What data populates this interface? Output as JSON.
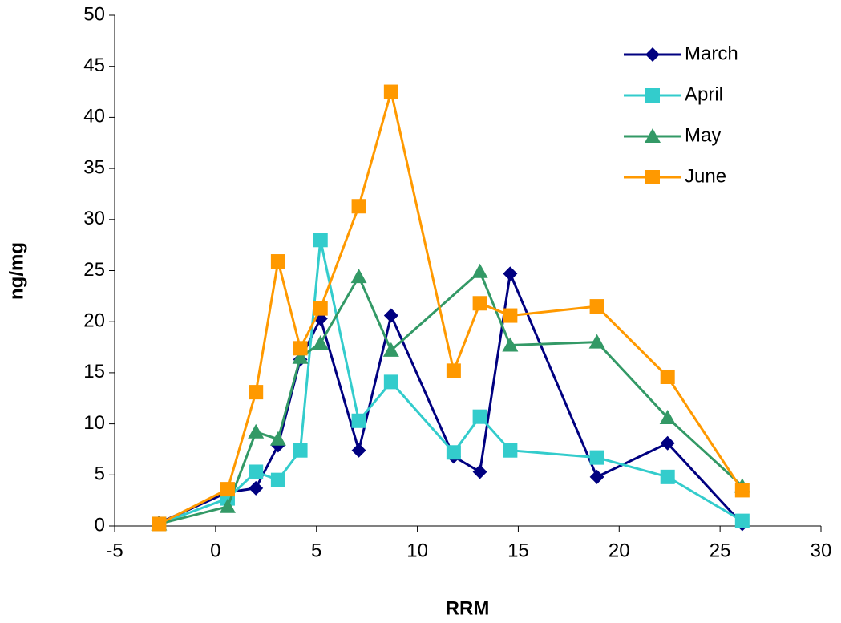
{
  "chart_data": {
    "type": "line",
    "x_label": "RRM",
    "y_label": "ng/mg",
    "xlim": [
      -5,
      30
    ],
    "xticks": [
      -5,
      0,
      5,
      10,
      15,
      20,
      25,
      30
    ],
    "ylim": [
      0,
      50
    ],
    "yticks": [
      0,
      5,
      10,
      15,
      20,
      25,
      30,
      35,
      40,
      45,
      50
    ],
    "grid": false,
    "legend": "upper right",
    "series": [
      {
        "name": "March",
        "color": "#000080",
        "marker": "diamond",
        "x": [
          -2.8,
          0.6,
          2.0,
          3.1,
          4.2,
          5.2,
          7.1,
          8.7,
          11.8,
          13.1,
          14.6,
          18.9,
          22.4,
          26.1
        ],
        "values": [
          0.3,
          3.3,
          3.7,
          7.9,
          16.3,
          20.3,
          7.4,
          20.6,
          6.8,
          5.3,
          24.7,
          4.8,
          8.1,
          0.2
        ]
      },
      {
        "name": "April",
        "color": "#33CCCC",
        "marker": "square",
        "x": [
          -2.8,
          0.6,
          2.0,
          3.1,
          4.2,
          5.2,
          7.1,
          8.7,
          11.8,
          13.1,
          14.6,
          18.9,
          22.4,
          26.1
        ],
        "values": [
          0.2,
          2.7,
          5.3,
          4.5,
          7.4,
          28,
          10.3,
          14.1,
          7.2,
          10.7,
          7.4,
          6.7,
          4.8,
          0.5
        ]
      },
      {
        "name": "May",
        "color": "#339966",
        "marker": "triangle",
        "x": [
          -2.8,
          0.6,
          2.0,
          3.1,
          4.2,
          5.2,
          7.1,
          8.7,
          13.1,
          14.6,
          18.9,
          22.4,
          26.1
        ],
        "values": [
          0.2,
          1.9,
          9.2,
          8.5,
          16.5,
          17.9,
          24.4,
          17.2,
          24.9,
          17.7,
          18,
          10.6,
          3.9
        ]
      },
      {
        "name": "June",
        "color": "#FF9900",
        "marker": "square",
        "x": [
          -2.8,
          0.6,
          2.0,
          3.1,
          4.2,
          5.2,
          7.1,
          8.7,
          11.8,
          13.1,
          14.6,
          18.9,
          22.4,
          26.1
        ],
        "values": [
          0.2,
          3.6,
          13.1,
          25.9,
          17.4,
          21.3,
          31.3,
          42.5,
          15.2,
          21.8,
          20.6,
          21.5,
          14.6,
          3.5
        ]
      }
    ]
  }
}
